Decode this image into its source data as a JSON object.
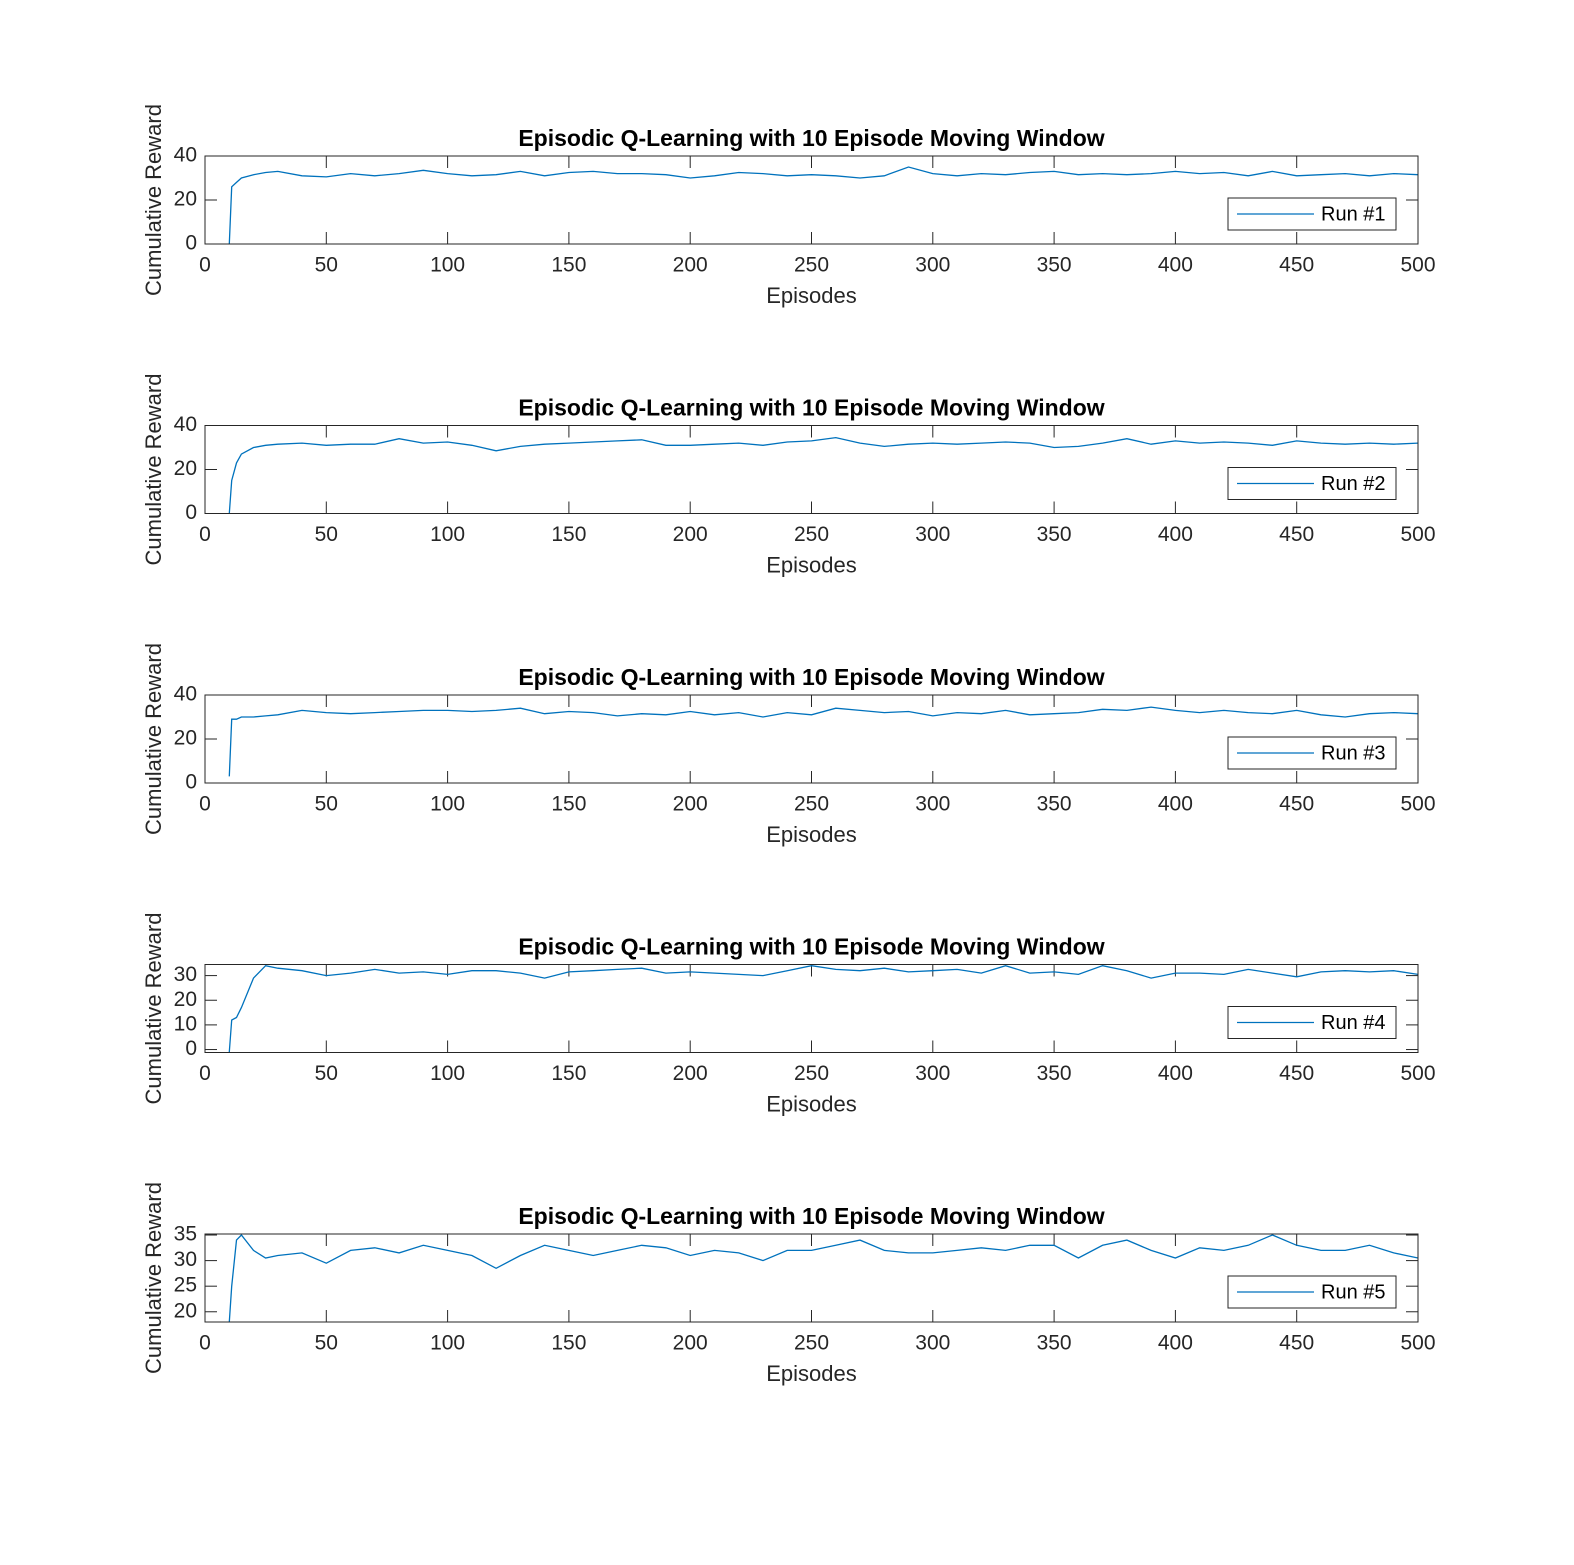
{
  "chart_data": [
    {
      "type": "line",
      "title": "Episodic Q-Learning with 10 Episode Moving Window",
      "xlabel": "Episodes",
      "ylabel": "Cumulative Reward",
      "x": [
        10,
        11,
        13,
        15,
        20,
        25,
        30,
        40,
        50,
        60,
        70,
        80,
        90,
        100,
        110,
        120,
        130,
        140,
        150,
        160,
        170,
        180,
        190,
        200,
        210,
        220,
        230,
        240,
        250,
        260,
        270,
        280,
        290,
        300,
        310,
        320,
        330,
        340,
        350,
        360,
        370,
        380,
        390,
        400,
        410,
        420,
        430,
        440,
        450,
        460,
        470,
        480,
        490,
        500
      ],
      "series": [
        {
          "name": "Run #1",
          "color": "#0072bd",
          "values": [
            0,
            26,
            28,
            30,
            31.5,
            32.5,
            33,
            31,
            30.5,
            32,
            31,
            32,
            33.5,
            32,
            31,
            31.5,
            33,
            31,
            32.5,
            33,
            32,
            32,
            31.5,
            30,
            31,
            32.5,
            32,
            31,
            31.5,
            31,
            30,
            31,
            35,
            32,
            31,
            32,
            31.5,
            32.5,
            33,
            31.5,
            32,
            31.5,
            32,
            33,
            32,
            32.5,
            31,
            33,
            31,
            31.5,
            32,
            31,
            32,
            31.5
          ]
        }
      ],
      "xlim": [
        0,
        500
      ],
      "xticks": [
        0,
        50,
        100,
        150,
        200,
        250,
        300,
        350,
        400,
        450,
        500
      ],
      "ylim": [
        0,
        40
      ],
      "yticks": [
        0,
        20,
        40
      ],
      "legend": "southeast"
    },
    {
      "type": "line",
      "title": "Episodic Q-Learning with 10 Episode Moving Window",
      "xlabel": "Episodes",
      "ylabel": "Cumulative Reward",
      "x": [
        10,
        11,
        13,
        15,
        20,
        25,
        30,
        40,
        50,
        60,
        70,
        80,
        90,
        100,
        110,
        120,
        130,
        140,
        150,
        160,
        170,
        180,
        190,
        200,
        210,
        220,
        230,
        240,
        250,
        260,
        270,
        280,
        290,
        300,
        310,
        320,
        330,
        340,
        350,
        360,
        370,
        380,
        390,
        400,
        410,
        420,
        430,
        440,
        450,
        460,
        470,
        480,
        490,
        500
      ],
      "series": [
        {
          "name": "Run #2",
          "color": "#0072bd",
          "values": [
            0,
            15,
            23,
            27,
            30,
            31,
            31.5,
            32,
            31,
            31.5,
            31.5,
            34,
            32,
            32.5,
            31,
            28.5,
            30.5,
            31.5,
            32,
            32.5,
            33,
            33.5,
            31,
            31,
            31.5,
            32,
            31,
            32.5,
            33,
            34.5,
            32,
            30.5,
            31.5,
            32,
            31.5,
            32,
            32.5,
            32,
            30,
            30.5,
            32,
            34,
            31.5,
            33,
            32,
            32.5,
            32,
            31,
            33,
            32,
            31.5,
            32,
            31.5,
            32
          ]
        }
      ],
      "xlim": [
        0,
        500
      ],
      "xticks": [
        0,
        50,
        100,
        150,
        200,
        250,
        300,
        350,
        400,
        450,
        500
      ],
      "ylim": [
        0,
        40
      ],
      "yticks": [
        0,
        20,
        40
      ],
      "legend": "southeast"
    },
    {
      "type": "line",
      "title": "Episodic Q-Learning with 10 Episode Moving Window",
      "xlabel": "Episodes",
      "ylabel": "Cumulative Reward",
      "x": [
        10,
        11,
        13,
        15,
        20,
        25,
        30,
        40,
        50,
        60,
        70,
        80,
        90,
        100,
        110,
        120,
        130,
        140,
        150,
        160,
        170,
        180,
        190,
        200,
        210,
        220,
        230,
        240,
        250,
        260,
        270,
        280,
        290,
        300,
        310,
        320,
        330,
        340,
        350,
        360,
        370,
        380,
        390,
        400,
        410,
        420,
        430,
        440,
        450,
        460,
        470,
        480,
        490,
        500
      ],
      "series": [
        {
          "name": "Run #3",
          "color": "#0072bd",
          "values": [
            3,
            29,
            29,
            30,
            30,
            30.5,
            31,
            33,
            32,
            31.5,
            32,
            32.5,
            33,
            33,
            32.5,
            33,
            34,
            31.5,
            32.5,
            32,
            30.5,
            31.5,
            31,
            32.5,
            31,
            32,
            30,
            32,
            31,
            34,
            33,
            32,
            32.5,
            30.5,
            32,
            31.5,
            33,
            31,
            31.5,
            32,
            33.5,
            33,
            34.5,
            33,
            32,
            33,
            32,
            31.5,
            33,
            31,
            30,
            31.5,
            32,
            31.5
          ]
        }
      ],
      "xlim": [
        0,
        500
      ],
      "xticks": [
        0,
        50,
        100,
        150,
        200,
        250,
        300,
        350,
        400,
        450,
        500
      ],
      "ylim": [
        0,
        40
      ],
      "yticks": [
        0,
        20,
        40
      ],
      "legend": "southeast"
    },
    {
      "type": "line",
      "title": "Episodic Q-Learning with 10 Episode Moving Window",
      "xlabel": "Episodes",
      "ylabel": "Cumulative Reward",
      "x": [
        10,
        11,
        13,
        15,
        20,
        25,
        30,
        40,
        50,
        60,
        70,
        80,
        90,
        100,
        110,
        120,
        130,
        140,
        150,
        160,
        170,
        180,
        190,
        200,
        210,
        220,
        230,
        240,
        250,
        260,
        270,
        280,
        290,
        300,
        310,
        320,
        330,
        340,
        350,
        360,
        370,
        380,
        390,
        400,
        410,
        420,
        430,
        440,
        450,
        460,
        470,
        480,
        490,
        500
      ],
      "series": [
        {
          "name": "Run #4",
          "color": "#0072bd",
          "values": [
            -1,
            12,
            13,
            17,
            29,
            34,
            33,
            32,
            30,
            31,
            32.5,
            31,
            31.5,
            30.5,
            32,
            32,
            31,
            29,
            31.5,
            32,
            32.5,
            33,
            31,
            31.5,
            31,
            30.5,
            30,
            32,
            34,
            32.5,
            32,
            33,
            31.5,
            32,
            32.5,
            31,
            34,
            31,
            31.5,
            30.5,
            34,
            32,
            29,
            31,
            31,
            30.5,
            32.5,
            31,
            29.5,
            31.5,
            32,
            31.5,
            32,
            30.5
          ]
        }
      ],
      "xlim": [
        0,
        500
      ],
      "xticks": [
        0,
        50,
        100,
        150,
        200,
        250,
        300,
        350,
        400,
        450,
        500
      ],
      "ylim": [
        -1.2,
        34.5
      ],
      "yticks": [
        0,
        10,
        20,
        30
      ],
      "legend": "southeast"
    },
    {
      "type": "line",
      "title": "Episodic Q-Learning with 10 Episode Moving Window",
      "xlabel": "Episodes",
      "ylabel": "Cumulative Reward",
      "x": [
        10,
        11,
        13,
        15,
        20,
        25,
        30,
        40,
        50,
        60,
        70,
        80,
        90,
        100,
        110,
        120,
        130,
        140,
        150,
        160,
        170,
        180,
        190,
        200,
        210,
        220,
        230,
        240,
        250,
        260,
        270,
        280,
        290,
        300,
        310,
        320,
        330,
        340,
        350,
        360,
        370,
        380,
        390,
        400,
        410,
        420,
        430,
        440,
        450,
        460,
        470,
        480,
        490,
        500
      ],
      "series": [
        {
          "name": "Run #5",
          "color": "#0072bd",
          "values": [
            18,
            25,
            34,
            35,
            32,
            30.5,
            31,
            31.5,
            29.5,
            32,
            32.5,
            31.5,
            33,
            32,
            31,
            28.5,
            31,
            33,
            32,
            31,
            32,
            33,
            32.5,
            31,
            32,
            31.5,
            30,
            32,
            32,
            33,
            34,
            32,
            31.5,
            31.5,
            32,
            32.5,
            32,
            33,
            33,
            30.5,
            33,
            34,
            32,
            30.5,
            32.5,
            32,
            33,
            35,
            33,
            32,
            32,
            33,
            31.5,
            30.5
          ]
        }
      ],
      "xlim": [
        0,
        500
      ],
      "xticks": [
        0,
        50,
        100,
        150,
        200,
        250,
        300,
        350,
        400,
        450,
        500
      ],
      "ylim": [
        18,
        35.2
      ],
      "yticks": [
        20,
        25,
        30,
        35
      ],
      "legend": "southeast"
    }
  ]
}
